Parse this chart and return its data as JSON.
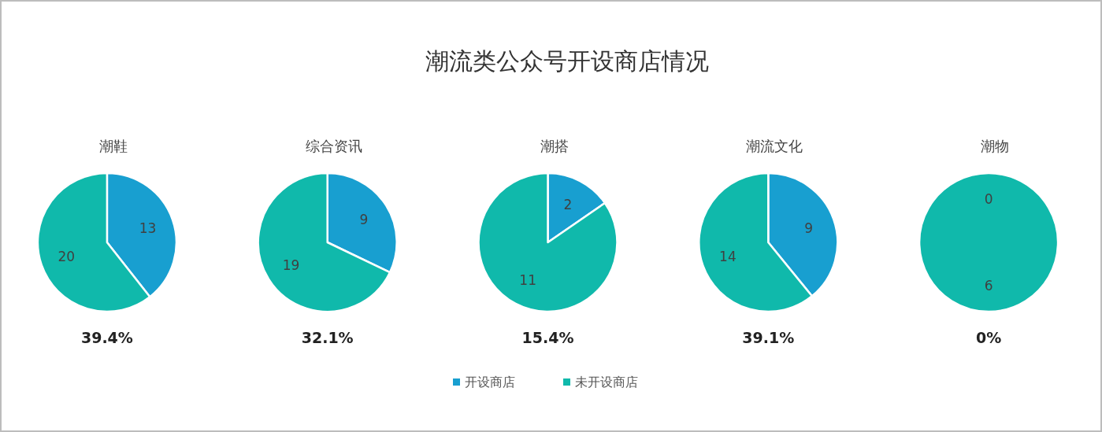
{
  "chart_data": [
    {
      "type": "other",
      "title": "潮流类公众号开设商店情况"
    },
    {
      "type": "pie",
      "title": "潮鞋",
      "categories": [
        null,
        null
      ],
      "values": [
        13,
        20
      ],
      "colors": [
        "#189fd0",
        "#10b9ab"
      ],
      "data_labels": true,
      "annotations": [
        "39.4%"
      ]
    },
    {
      "type": "pie",
      "title": "综合资讯",
      "categories": [
        null,
        null
      ],
      "values": [
        9,
        19
      ],
      "colors": [
        "#189fd0",
        "#10b9ab"
      ],
      "data_labels": true,
      "annotations": [
        "32.1%"
      ]
    },
    {
      "type": "pie",
      "title": "潮搭",
      "categories": [
        "开设商店",
        "未开设商店"
      ],
      "values": [
        2,
        11
      ],
      "colors": [
        "#189fd0",
        "#10b9ab"
      ],
      "data_labels": true,
      "annotations": [
        "15.4%"
      ],
      "legend": "bottom"
    },
    {
      "type": "pie",
      "title": "潮流文化",
      "categories": [
        null,
        null
      ],
      "values": [
        9,
        14
      ],
      "colors": [
        "#189fd0",
        "#10b9ab"
      ],
      "data_labels": true,
      "annotations": [
        "39.1%"
      ]
    },
    {
      "type": "pie",
      "title": "潮物",
      "categories": [
        null,
        null
      ],
      "values": [
        0,
        6
      ],
      "colors": [
        "#189fd0",
        "#10b9ab"
      ],
      "value_labels": [
        "0",
        "6"
      ],
      "annotations": [
        "0%"
      ]
    }
  ]
}
